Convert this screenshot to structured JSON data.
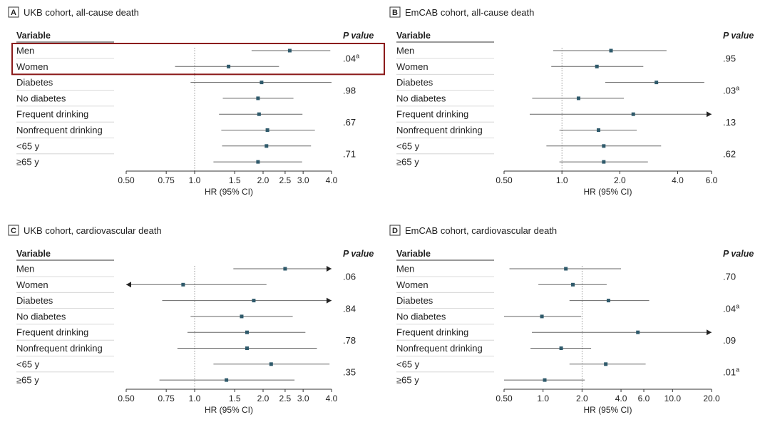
{
  "header_variable": "Variable",
  "header_p": "P value",
  "chart_data": [
    {
      "type": "forest",
      "letter": "A",
      "title": "UKB cohort, all-cause death",
      "xlabel": "HR (95% CI)",
      "xscale": "log",
      "xlim": [
        0.5,
        4.0
      ],
      "ticks": [
        0.5,
        0.75,
        1.0,
        1.5,
        2.0,
        2.5,
        3.0,
        4.0
      ],
      "tick_labels": [
        "0.50",
        "0.75",
        "1.0",
        "1.5",
        "2.0",
        "2.5",
        "3.0",
        "4.0"
      ],
      "reference_line": 1.0,
      "highlight_rows": [
        0,
        1
      ],
      "rows": [
        {
          "label": "Men",
          "hr": 2.62,
          "lo": 1.78,
          "hi": 3.95,
          "arrow": ""
        },
        {
          "label": "Women",
          "hr": 1.41,
          "lo": 0.82,
          "hi": 2.35,
          "arrow": ""
        },
        {
          "label": "Diabetes",
          "hr": 1.97,
          "lo": 0.96,
          "hi": 4.0,
          "arrow": ""
        },
        {
          "label": "No diabetes",
          "hr": 1.9,
          "lo": 1.33,
          "hi": 2.72,
          "arrow": ""
        },
        {
          "label": "Frequent drinking",
          "hr": 1.92,
          "lo": 1.28,
          "hi": 2.98,
          "arrow": ""
        },
        {
          "label": "Nonfrequent drinking",
          "hr": 2.09,
          "lo": 1.31,
          "hi": 3.38,
          "arrow": ""
        },
        {
          "label": "<65 y",
          "hr": 2.07,
          "lo": 1.32,
          "hi": 3.25,
          "arrow": ""
        },
        {
          "label": "≥65 y",
          "hr": 1.9,
          "lo": 1.21,
          "hi": 2.97,
          "arrow": ""
        }
      ],
      "pvalues": [
        {
          "text": ".04",
          "sup": "a",
          "rows": [
            0,
            1
          ]
        },
        {
          "text": ".98",
          "sup": "",
          "rows": [
            2,
            3
          ]
        },
        {
          "text": ".67",
          "sup": "",
          "rows": [
            4,
            5
          ]
        },
        {
          "text": ".71",
          "sup": "",
          "rows": [
            6,
            7
          ]
        }
      ]
    },
    {
      "type": "forest",
      "letter": "B",
      "title": "EmCAB cohort, all-cause death",
      "xlabel": "HR (95% CI)",
      "xscale": "log",
      "xlim": [
        0.5,
        6.0
      ],
      "ticks": [
        0.5,
        1.0,
        2.0,
        4.0,
        6.0
      ],
      "tick_labels": [
        "0.50",
        "1.0",
        "2.0",
        "4.0",
        "6.0"
      ],
      "reference_line": 1.0,
      "highlight_rows": [],
      "rows": [
        {
          "label": "Men",
          "hr": 1.8,
          "lo": 0.9,
          "hi": 3.5,
          "arrow": ""
        },
        {
          "label": "Women",
          "hr": 1.52,
          "lo": 0.88,
          "hi": 2.65,
          "arrow": ""
        },
        {
          "label": "Diabetes",
          "hr": 3.1,
          "lo": 1.68,
          "hi": 5.5,
          "arrow": ""
        },
        {
          "label": "No diabetes",
          "hr": 1.22,
          "lo": 0.7,
          "hi": 2.1,
          "arrow": ""
        },
        {
          "label": "Frequent drinking",
          "hr": 2.35,
          "lo": 0.68,
          "hi": 6.0,
          "arrow": "right"
        },
        {
          "label": "Nonfrequent drinking",
          "hr": 1.55,
          "lo": 0.97,
          "hi": 2.45,
          "arrow": ""
        },
        {
          "label": "<65 y",
          "hr": 1.65,
          "lo": 0.83,
          "hi": 3.28,
          "arrow": ""
        },
        {
          "label": "≥65 y",
          "hr": 1.65,
          "lo": 0.97,
          "hi": 2.8,
          "arrow": ""
        }
      ],
      "pvalues": [
        {
          "text": ".95",
          "sup": "",
          "rows": [
            0,
            1
          ]
        },
        {
          "text": ".03",
          "sup": "a",
          "rows": [
            2,
            3
          ]
        },
        {
          "text": ".13",
          "sup": "",
          "rows": [
            4,
            5
          ]
        },
        {
          "text": ".62",
          "sup": "",
          "rows": [
            6,
            7
          ]
        }
      ]
    },
    {
      "type": "forest",
      "letter": "C",
      "title": "UKB cohort, cardiovascular death",
      "xlabel": "HR (95% CI)",
      "xscale": "log",
      "xlim": [
        0.5,
        4.0
      ],
      "ticks": [
        0.5,
        0.75,
        1.0,
        1.5,
        2.0,
        2.5,
        3.0,
        4.0
      ],
      "tick_labels": [
        "0.50",
        "0.75",
        "1.0",
        "1.5",
        "2.0",
        "2.5",
        "3.0",
        "4.0"
      ],
      "reference_line": 1.0,
      "highlight_rows": [],
      "rows": [
        {
          "label": "Men",
          "hr": 2.5,
          "lo": 1.48,
          "hi": 4.0,
          "arrow": "right"
        },
        {
          "label": "Women",
          "hr": 0.89,
          "lo": 0.5,
          "hi": 2.07,
          "arrow": "left"
        },
        {
          "label": "Diabetes",
          "hr": 1.82,
          "lo": 0.72,
          "hi": 4.0,
          "arrow": "right"
        },
        {
          "label": "No diabetes",
          "hr": 1.61,
          "lo": 0.96,
          "hi": 2.7,
          "arrow": ""
        },
        {
          "label": "Frequent drinking",
          "hr": 1.7,
          "lo": 0.93,
          "hi": 3.07,
          "arrow": ""
        },
        {
          "label": "Nonfrequent drinking",
          "hr": 1.7,
          "lo": 0.84,
          "hi": 3.45,
          "arrow": ""
        },
        {
          "label": "<65 y",
          "hr": 2.17,
          "lo": 1.21,
          "hi": 3.92,
          "arrow": ""
        },
        {
          "label": "≥65 y",
          "hr": 1.38,
          "lo": 0.7,
          "hi": 2.75,
          "arrow": ""
        }
      ],
      "pvalues": [
        {
          "text": ".06",
          "sup": "",
          "rows": [
            0,
            1
          ]
        },
        {
          "text": ".84",
          "sup": "",
          "rows": [
            2,
            3
          ]
        },
        {
          "text": ".78",
          "sup": "",
          "rows": [
            4,
            5
          ]
        },
        {
          "text": ".35",
          "sup": "",
          "rows": [
            6,
            7
          ]
        }
      ]
    },
    {
      "type": "forest",
      "letter": "D",
      "title": "EmCAB cohort, cardiovascular death",
      "xlabel": "HR (95% CI)",
      "xscale": "log",
      "xlim": [
        0.5,
        20.0
      ],
      "ticks": [
        0.5,
        1.0,
        2.0,
        4.0,
        6.0,
        10.0,
        20.0
      ],
      "tick_labels": [
        "0.50",
        "1.0",
        "2.0",
        "4.0",
        "6.0",
        "10.0",
        "20.0"
      ],
      "reference_line": 2.0,
      "highlight_rows": [],
      "rows": [
        {
          "label": "Men",
          "hr": 1.5,
          "lo": 0.55,
          "hi": 4.0,
          "arrow": ""
        },
        {
          "label": "Women",
          "hr": 1.7,
          "lo": 0.92,
          "hi": 3.1,
          "arrow": ""
        },
        {
          "label": "Diabetes",
          "hr": 3.2,
          "lo": 1.6,
          "hi": 6.6,
          "arrow": ""
        },
        {
          "label": "No diabetes",
          "hr": 0.98,
          "lo": 0.5,
          "hi": 1.97,
          "arrow": ""
        },
        {
          "label": "Frequent drinking",
          "hr": 5.4,
          "lo": 0.82,
          "hi": 20.0,
          "arrow": "right"
        },
        {
          "label": "Nonfrequent drinking",
          "hr": 1.38,
          "lo": 0.8,
          "hi": 2.35,
          "arrow": ""
        },
        {
          "label": "<65 y",
          "hr": 3.05,
          "lo": 1.6,
          "hi": 6.2,
          "arrow": ""
        },
        {
          "label": "≥65 y",
          "hr": 1.03,
          "lo": 0.5,
          "hi": 2.1,
          "arrow": ""
        }
      ],
      "pvalues": [
        {
          "text": ".70",
          "sup": "",
          "rows": [
            0,
            1
          ]
        },
        {
          "text": ".04",
          "sup": "a",
          "rows": [
            2,
            3
          ]
        },
        {
          "text": ".09",
          "sup": "",
          "rows": [
            4,
            5
          ]
        },
        {
          "text": ".01",
          "sup": "a",
          "rows": [
            6,
            7
          ]
        }
      ]
    }
  ],
  "colors": {
    "point": "#2f5a6b",
    "ci_line": "#666666",
    "reference": "#777777",
    "row_rule": "#cfcfcf",
    "highlight": "#8b1a1a"
  }
}
